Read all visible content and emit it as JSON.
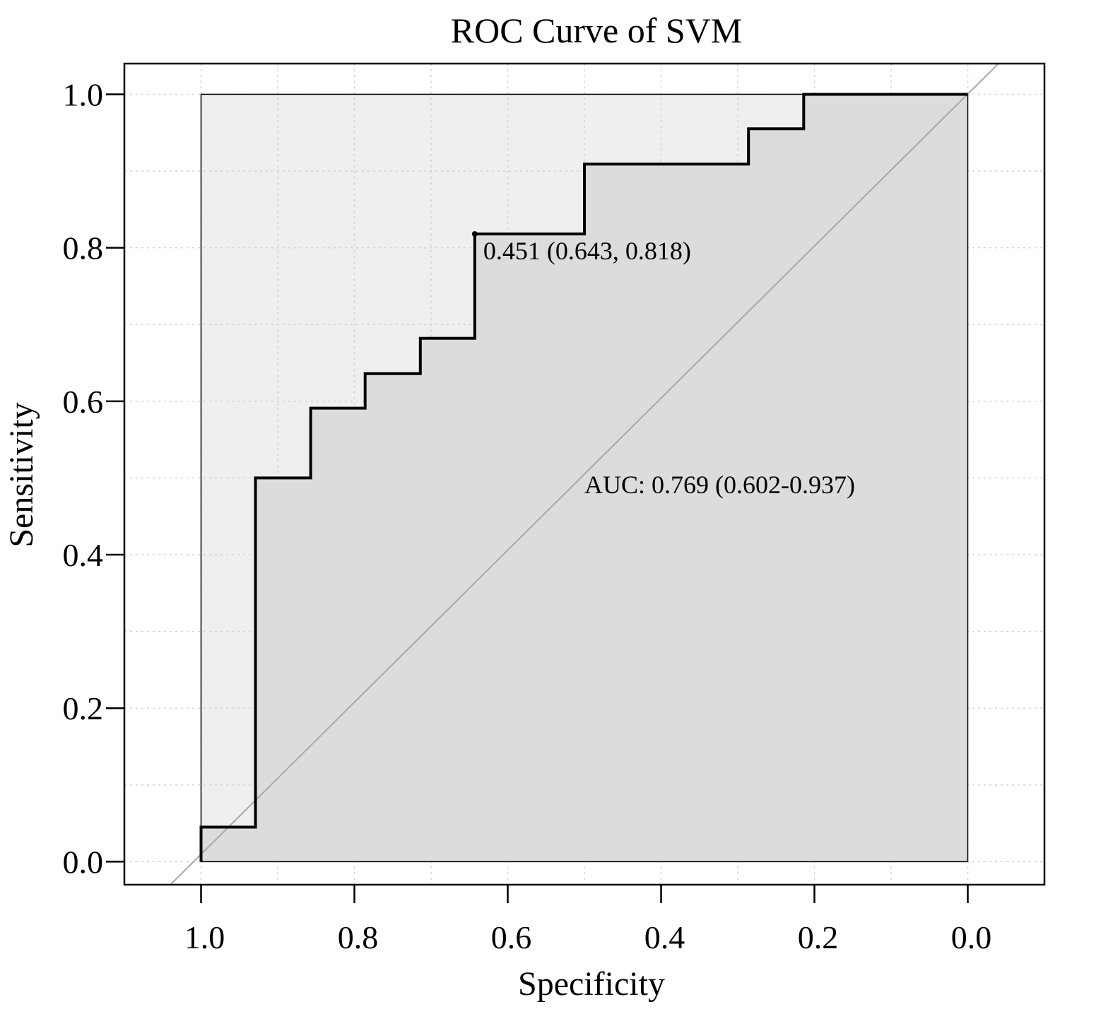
{
  "chart_data": {
    "type": "line",
    "title": "ROC Curve of SVM",
    "xlabel": "Specificity",
    "ylabel": "Sensitivity",
    "xlim": [
      1.1,
      -0.1
    ],
    "ylim": [
      -0.03,
      1.04
    ],
    "x_reversed": true,
    "grid": true,
    "x_ticks": [
      1.0,
      0.8,
      0.6,
      0.4,
      0.2,
      0.0
    ],
    "x_tick_labels": [
      "1.0",
      "0.8",
      "0.6",
      "0.4",
      "0.2",
      "0.0"
    ],
    "y_ticks": [
      0.0,
      0.2,
      0.4,
      0.6,
      0.8,
      1.0
    ],
    "y_tick_labels": [
      "0.0",
      "0.2",
      "0.4",
      "0.6",
      "0.8",
      "1.0"
    ],
    "grid_x": [
      1.0,
      0.9,
      0.8,
      0.7,
      0.6,
      0.5,
      0.4,
      0.3,
      0.2,
      0.1,
      0.0
    ],
    "grid_y": [
      0.0,
      0.1,
      0.2,
      0.3,
      0.4,
      0.5,
      0.6,
      0.7,
      0.8,
      0.9,
      1.0
    ],
    "series": [
      {
        "name": "SVM",
        "specificity": [
          1.0,
          1.0,
          0.929,
          0.929,
          0.857,
          0.857,
          0.786,
          0.786,
          0.714,
          0.714,
          0.643,
          0.643,
          0.5,
          0.5,
          0.286,
          0.286,
          0.214,
          0.214,
          0.0
        ],
        "sensitivity": [
          0.0,
          0.045,
          0.045,
          0.5,
          0.5,
          0.591,
          0.591,
          0.636,
          0.636,
          0.682,
          0.682,
          0.818,
          0.818,
          0.909,
          0.909,
          0.955,
          0.955,
          1.0,
          1.0
        ]
      }
    ],
    "reference_line": {
      "from": [
        1.04,
        -0.03
      ],
      "to": [
        -0.04,
        1.04
      ]
    },
    "best_threshold": {
      "specificity": 0.643,
      "sensitivity": 0.818,
      "label": "0.451 (0.643, 0.818)"
    },
    "auc_text": {
      "label": "AUC: 0.769 (0.602-0.937)",
      "at_specificity": 0.5,
      "at_sensitivity": 0.48
    },
    "colors": {
      "curve": "#000000",
      "reference": "#a8a8a8",
      "auc_fill": "#dcdcdc",
      "unit_square_fill": "#efefef",
      "grid": "#d4d4d4",
      "frame": "#000000"
    }
  }
}
